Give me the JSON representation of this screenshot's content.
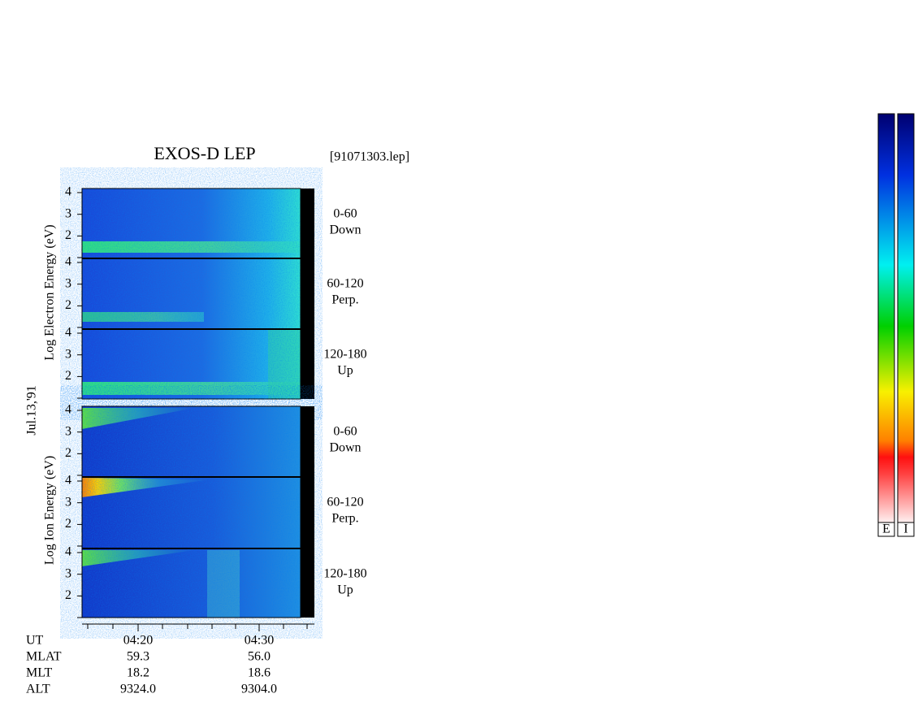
{
  "title": "EXOS-D LEP",
  "file": "[91071303.lep]",
  "date": "Jul.13,'91",
  "electron_axis_label": "Log Electron Energy (eV)",
  "ion_axis_label": "Log Ion Energy (eV)",
  "yticks": [
    "2",
    "3",
    "4"
  ],
  "electron_panels": [
    {
      "range": "0-60",
      "direction": "Down"
    },
    {
      "range": "60-120",
      "direction": "Perp."
    },
    {
      "range": "120-180",
      "direction": "Up"
    }
  ],
  "ion_panels": [
    {
      "range": "0-60",
      "direction": "Down"
    },
    {
      "range": "60-120",
      "direction": "Perp."
    },
    {
      "range": "120-180",
      "direction": "Up"
    }
  ],
  "ephemeris": {
    "labels": [
      "UT",
      "MLAT",
      "MLT",
      "ALT"
    ],
    "columns": [
      [
        "04:20",
        "59.3",
        "18.2",
        "9324.0"
      ],
      [
        "04:30",
        "56.0",
        "18.6",
        "9304.0"
      ]
    ]
  },
  "colorbar_labels": [
    "E",
    "I"
  ]
}
